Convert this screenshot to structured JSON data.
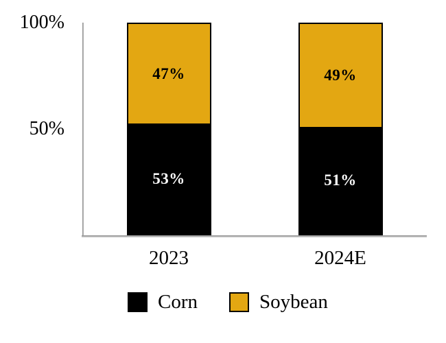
{
  "chart_data": {
    "type": "bar",
    "stacked": true,
    "orientation": "vertical",
    "title": "",
    "categories": [
      "2023",
      "2024E"
    ],
    "series": [
      {
        "name": "Corn",
        "color": "#000000",
        "label_color": "#ffffff",
        "values": [
          53,
          51
        ],
        "data_labels": [
          "53%",
          "51%"
        ]
      },
      {
        "name": "Soybean",
        "color": "#e3a712",
        "label_color": "#000000",
        "values": [
          47,
          49
        ],
        "data_labels": [
          "47%",
          "49%"
        ]
      }
    ],
    "y_axis": {
      "max": 100,
      "min": 0,
      "ticks": [
        {
          "label": "100%",
          "value": 100
        },
        {
          "label": "50%",
          "value": 50
        }
      ]
    },
    "grid": false,
    "legend_position": "bottom",
    "axis_color": "#9e9e9e",
    "background_color": "#ffffff"
  }
}
